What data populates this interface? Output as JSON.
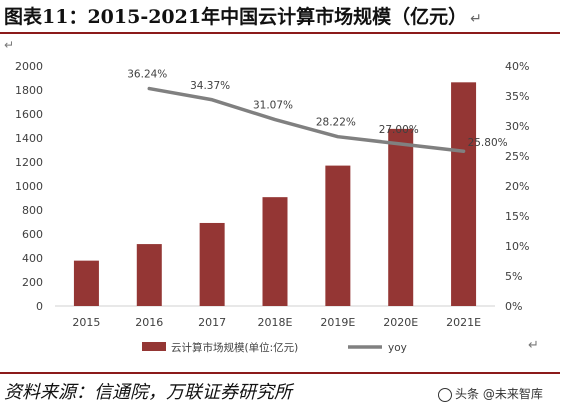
{
  "title": "图表11：2015-2021年中国云计算市场规模（亿元）",
  "source": "资料来源：信通院，万联证券研究所",
  "watermark": "头条 @未来智库",
  "return_mark": "↵",
  "colors": {
    "bar": "#943634",
    "line": "#808080",
    "rule": "#8b1a1a"
  },
  "chart_data": {
    "type": "bar",
    "categories": [
      "2015",
      "2016",
      "2017",
      "2018E",
      "2019E",
      "2020E",
      "2021E"
    ],
    "series": [
      {
        "name": "云计算市场规模(单位:亿元)",
        "type": "bar",
        "axis": "left",
        "values": [
          378,
          516,
          692,
          907,
          1170,
          1476,
          1864
        ]
      },
      {
        "name": "yoy",
        "type": "line",
        "axis": "right",
        "values": [
          null,
          36.24,
          34.37,
          31.07,
          28.22,
          27.0,
          25.8
        ],
        "labels": [
          "",
          "36.24%",
          "34.37%",
          "31.07%",
          "28.22%",
          "27.00%",
          "25.80%"
        ]
      }
    ],
    "y_left": {
      "min": 0,
      "max": 2000,
      "step": 200,
      "ticks": [
        "0",
        "200",
        "400",
        "600",
        "800",
        "1000",
        "1200",
        "1400",
        "1600",
        "1800",
        "2000"
      ]
    },
    "y_right": {
      "min": 0,
      "max": 40,
      "step": 5,
      "ticks": [
        "0%",
        "5%",
        "10%",
        "15%",
        "20%",
        "25%",
        "30%",
        "35%",
        "40%"
      ]
    },
    "grid": false,
    "legend": "bottom"
  }
}
